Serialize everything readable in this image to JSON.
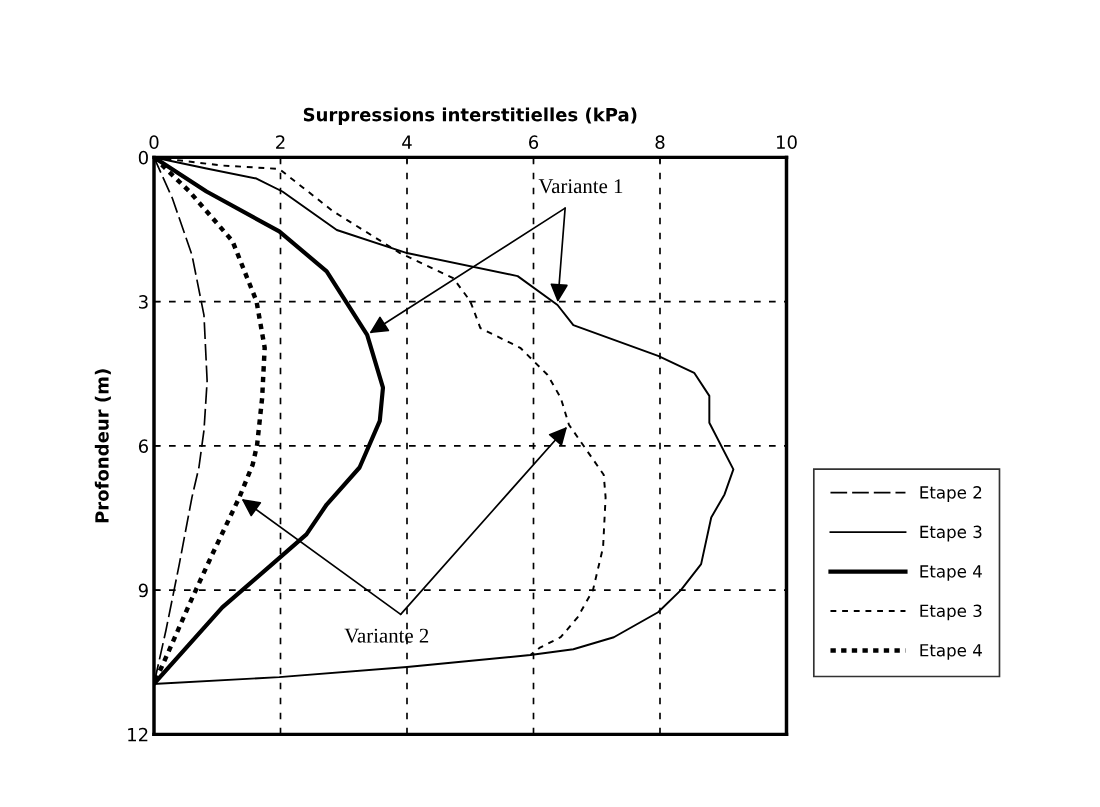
{
  "chart_data": {
    "type": "line",
    "xlabel": "Surpressions interstitielles (kPa)",
    "ylabel": "Profondeur (m)",
    "xlim": [
      0,
      10
    ],
    "xticks": [
      0,
      2,
      4,
      6,
      8,
      10
    ],
    "ylim": [
      12,
      0
    ],
    "yticks": [
      0,
      3,
      6,
      9,
      12
    ],
    "grid": true,
    "legend": "right",
    "marker": "none",
    "series": [
      {
        "name": "Etape 2",
        "color": "#000000",
        "line_style": "dashed",
        "x": [
          0,
          0.29,
          0.6,
          0.79,
          0.84,
          0.79,
          0.71,
          0.6,
          0.4,
          0.19,
          0
        ],
        "values": [
          0,
          0.85,
          2.03,
          3.28,
          4.65,
          5.68,
          6.45,
          7.07,
          8.46,
          9.83,
          10.95
        ]
      },
      {
        "name": "Etape 3",
        "color": "#000000",
        "line_style": "solid",
        "x": [
          0,
          0.83,
          1.62,
          2.03,
          2.89,
          4.0,
          5.75,
          6.38,
          6.63,
          7.97,
          8.54,
          8.78,
          8.78,
          9.16,
          9.02,
          8.81,
          8.65,
          8.33,
          7.97,
          7.27,
          6.63,
          5.95,
          4.0,
          1.98,
          0
        ],
        "values": [
          0,
          0.23,
          0.44,
          0.71,
          1.51,
          1.99,
          2.47,
          3.07,
          3.49,
          4.13,
          4.48,
          4.96,
          5.52,
          6.49,
          7.01,
          7.49,
          8.46,
          9.0,
          9.46,
          9.98,
          10.23,
          10.35,
          10.6,
          10.81,
          10.95
        ]
      },
      {
        "name": "Etape 4",
        "color": "#000000",
        "line_style": "solid",
        "x": [
          0,
          0.83,
          1.98,
          2.73,
          3.37,
          3.62,
          3.57,
          3.25,
          2.73,
          2.41,
          1.87,
          1.08,
          0
        ],
        "values": [
          0,
          0.71,
          1.54,
          2.37,
          3.69,
          4.79,
          5.48,
          6.45,
          7.22,
          7.84,
          8.46,
          9.36,
          10.95
        ]
      },
      {
        "name": "Etape 3",
        "color": "#000000",
        "line_style": "dashed",
        "x": [
          0,
          1.08,
          1.98,
          2.83,
          3.89,
          4.73,
          5.0,
          5.16,
          5.79,
          6.22,
          6.43,
          6.56,
          7.11,
          7.14,
          7.1,
          6.94,
          6.7,
          6.43,
          6.11,
          5.95
        ],
        "values": [
          0,
          0.17,
          0.24,
          1.12,
          1.99,
          2.51,
          2.99,
          3.55,
          3.96,
          4.52,
          5.0,
          5.56,
          6.6,
          7.07,
          8.11,
          9.0,
          9.56,
          9.98,
          10.19,
          10.35
        ]
      },
      {
        "name": "Etape 4",
        "color": "#000000",
        "line_style": "dotted",
        "x": [
          0,
          0.56,
          1.24,
          1.62,
          1.75,
          1.71,
          1.63,
          1.56,
          1.35,
          0.92,
          0.56,
          0.24,
          0
        ],
        "values": [
          0,
          0.71,
          1.74,
          2.99,
          3.96,
          5.0,
          5.98,
          6.39,
          7.07,
          8.26,
          9.29,
          10.25,
          10.95
        ]
      }
    ],
    "annotations": [
      {
        "text": "Variante 1",
        "x": 6.38,
        "y": 3.07
      },
      {
        "text": "Variante 2",
        "x": 1.35,
        "y": 7.07
      }
    ]
  }
}
